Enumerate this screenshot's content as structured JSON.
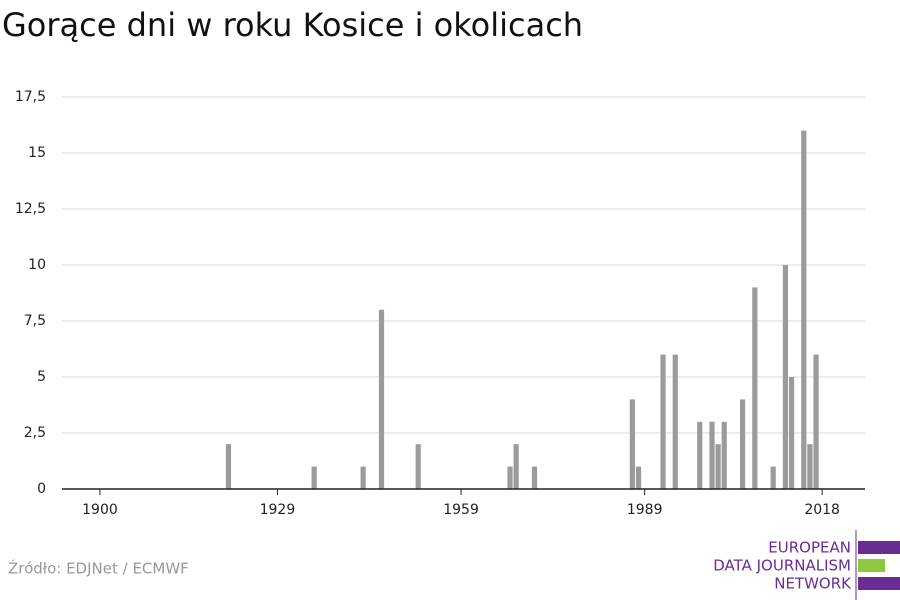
{
  "chart_data": {
    "type": "bar",
    "title": "Gorące dni w roku Kosice i okolicach",
    "x": [
      1921,
      1935,
      1943,
      1946,
      1952,
      1967,
      1968,
      1971,
      1987,
      1988,
      1992,
      1994,
      1998,
      2000,
      2001,
      2002,
      2005,
      2007,
      2010,
      2012,
      2013,
      2015,
      2016,
      2017
    ],
    "values": [
      2,
      1,
      1,
      8,
      2,
      1,
      2,
      1,
      4,
      1,
      6,
      6,
      3,
      3,
      2,
      3,
      4,
      9,
      1,
      10,
      5,
      16,
      2,
      6
    ],
    "color": "#9b9b9b",
    "xlim": [
      1893.8,
      2025
    ],
    "xticks": [
      1900,
      1929,
      1959,
      1989,
      2018
    ],
    "ylim": [
      0,
      17.5
    ],
    "yticks": [
      0,
      {
        "value": 2.5,
        "label": "2,5"
      },
      5,
      {
        "value": 7.5,
        "label": "7,5"
      },
      10,
      {
        "value": 12.5,
        "label": "12,5"
      },
      15,
      {
        "value": 17.5,
        "label": "17,5"
      }
    ],
    "grid": true
  },
  "footer": {
    "source": "Źródło: EDJNet / ECMWF",
    "logo": [
      "EUROPEAN",
      "DATA JOURNALISM",
      "NETWORK"
    ]
  }
}
